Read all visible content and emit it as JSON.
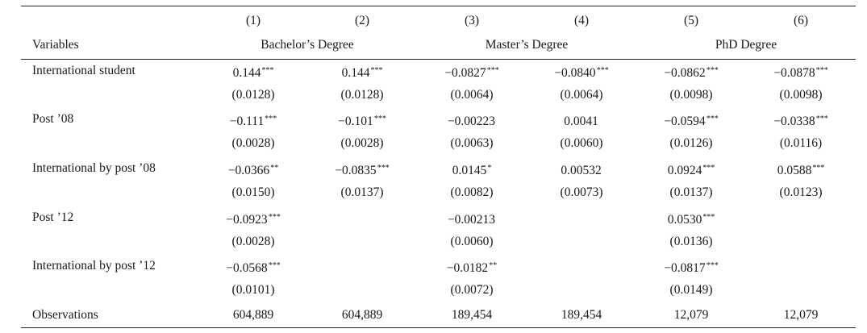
{
  "header": {
    "col_numbers": [
      "(1)",
      "(2)",
      "(3)",
      "(4)",
      "(5)",
      "(6)"
    ],
    "variables_label": "Variables",
    "groups": [
      "Bachelor’s Degree",
      "Master’s Degree",
      "PhD Degree"
    ]
  },
  "rows": [
    {
      "label": "International student",
      "coef": [
        [
          "0.144",
          "***"
        ],
        [
          "0.144",
          "***"
        ],
        [
          "−0.0827",
          "***"
        ],
        [
          "−0.0840",
          "***"
        ],
        [
          "−0.0862",
          "***"
        ],
        [
          "−0.0878",
          "***"
        ]
      ],
      "se": [
        "(0.0128)",
        "(0.0128)",
        "(0.0064)",
        "(0.0064)",
        "(0.0098)",
        "(0.0098)"
      ]
    },
    {
      "label": "Post ’08",
      "coef": [
        [
          "−0.111",
          "***"
        ],
        [
          "−0.101",
          "***"
        ],
        [
          "−0.00223",
          ""
        ],
        [
          "0.0041",
          ""
        ],
        [
          "−0.0594",
          "***"
        ],
        [
          "−0.0338",
          "***"
        ]
      ],
      "se": [
        "(0.0028)",
        "(0.0028)",
        "(0.0063)",
        "(0.0060)",
        "(0.0126)",
        "(0.0116)"
      ]
    },
    {
      "label": "International by post ’08",
      "coef": [
        [
          "−0.0366",
          "**"
        ],
        [
          "−0.0835",
          "***"
        ],
        [
          "0.0145",
          "*"
        ],
        [
          "0.00532",
          ""
        ],
        [
          "0.0924",
          "***"
        ],
        [
          "0.0588",
          "***"
        ]
      ],
      "se": [
        "(0.0150)",
        "(0.0137)",
        "(0.0082)",
        "(0.0073)",
        "(0.0137)",
        "(0.0123)"
      ]
    },
    {
      "label": "Post ’12",
      "coef": [
        [
          "−0.0923",
          "***"
        ],
        [
          "",
          ""
        ],
        [
          "−0.00213",
          ""
        ],
        [
          "",
          ""
        ],
        [
          "0.0530",
          "***"
        ],
        [
          "",
          ""
        ]
      ],
      "se": [
        "(0.0028)",
        "",
        "(0.0060)",
        "",
        "(0.0136)",
        ""
      ]
    },
    {
      "label": "International by post ’12",
      "coef": [
        [
          "−0.0568",
          "***"
        ],
        [
          "",
          ""
        ],
        [
          "−0.0182",
          "**"
        ],
        [
          "",
          ""
        ],
        [
          "−0.0817",
          "***"
        ],
        [
          "",
          ""
        ]
      ],
      "se": [
        "(0.0101)",
        "",
        "(0.0072)",
        "",
        "(0.0149)",
        ""
      ]
    }
  ],
  "observations": {
    "label": "Observations",
    "values": [
      "604,889",
      "604,889",
      "189,454",
      "189,454",
      "12,079",
      "12,079"
    ]
  }
}
